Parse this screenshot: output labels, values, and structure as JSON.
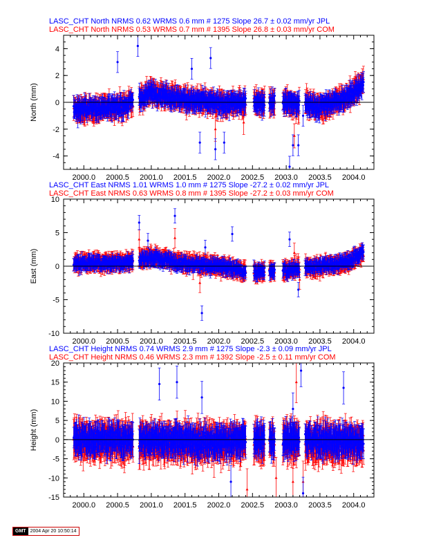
{
  "colors": {
    "jpl": "#0000ff",
    "com": "#ff0000",
    "axis": "#000000"
  },
  "stamp": {
    "tag": "GMT",
    "timestamp": "2004 Apr 20 10:50:14"
  },
  "chart_data": [
    {
      "type": "scatter",
      "component": "north",
      "header": [
        "LASC_CHT North NRMS 0.62 WRMS  0.6 mm # 1275 Slope   26.7 ±  0.02 mm/yr JPL",
        "LASC_CHT North NRMS 0.53 WRMS  0.7 mm # 1395 Slope   26.8 ±  0.03 mm/yr COM"
      ],
      "ylabel": "North (mm)",
      "xlim": [
        1999.7,
        2004.3
      ],
      "ylim": [
        -5,
        5
      ],
      "xticks": [
        "2000.0",
        "2000.5",
        "2001.0",
        "2001.5",
        "2002.0",
        "2002.5",
        "2003.0",
        "2003.5",
        "2004.0"
      ],
      "yticks": [
        "-4",
        "-2",
        "0",
        "2",
        "4"
      ],
      "series": [
        {
          "name": "COM",
          "color": "#ff0000",
          "sigma": 0.75,
          "scatter": 0.8,
          "trend": [
            [
              1999.85,
              -0.6
            ],
            [
              2000.6,
              -0.3
            ],
            [
              2001.0,
              0.8
            ],
            [
              2001.5,
              0.2
            ],
            [
              2002.0,
              -0.2
            ],
            [
              2002.5,
              0.0
            ],
            [
              2003.0,
              0.0
            ],
            [
              2003.5,
              -0.3
            ],
            [
              2003.9,
              0.3
            ],
            [
              2004.15,
              1.6
            ]
          ],
          "outliers": [
            [
              2003.12,
              -2.5
            ],
            [
              2003.3,
              0.5
            ],
            [
              2001.95,
              -2.0
            ],
            [
              2002.37,
              -1.5
            ]
          ]
        },
        {
          "name": "JPL",
          "color": "#0000ff",
          "sigma": 0.65,
          "scatter": 0.65,
          "trend": [
            [
              1999.85,
              -0.5
            ],
            [
              2000.6,
              -0.3
            ],
            [
              2001.0,
              0.7
            ],
            [
              2001.5,
              0.2
            ],
            [
              2002.0,
              -0.1
            ],
            [
              2002.5,
              0.0
            ],
            [
              2003.0,
              0.0
            ],
            [
              2003.5,
              -0.3
            ],
            [
              2003.9,
              0.3
            ],
            [
              2004.15,
              1.5
            ]
          ],
          "outliers": [
            [
              2000.8,
              4.2
            ],
            [
              2001.72,
              -3.0
            ],
            [
              2001.95,
              -3.5
            ],
            [
              2003.1,
              -3.2
            ],
            [
              2003.18,
              -3.2
            ],
            [
              2003.05,
              -4.8
            ],
            [
              2000.5,
              3.0
            ],
            [
              2001.88,
              3.3
            ],
            [
              2001.6,
              2.5
            ],
            [
              2003.25,
              -1.0
            ],
            [
              2002.08,
              -3.0
            ]
          ]
        }
      ]
    },
    {
      "type": "scatter",
      "component": "east",
      "header": [
        "LASC_CHT East NRMS 1.01 WRMS  1.0 mm # 1275 Slope  -27.2 ±  0.02 mm/yr JPL",
        "LASC_CHT East NRMS 0.63 WRMS  0.8 mm # 1395 Slope  -27.2 ±  0.03 mm/yr COM"
      ],
      "ylabel": "East (mm)",
      "xlim": [
        1999.7,
        2004.3
      ],
      "ylim": [
        -10,
        10
      ],
      "xticks": [
        "2000.0",
        "2000.5",
        "2001.0",
        "2001.5",
        "2002.0",
        "2002.5",
        "2003.0",
        "2003.5",
        "2004.0"
      ],
      "yticks": [
        "-10",
        "-5",
        "0",
        "5",
        "10"
      ],
      "series": [
        {
          "name": "COM",
          "color": "#ff0000",
          "sigma": 1.2,
          "scatter": 0.9,
          "trend": [
            [
              1999.85,
              0.5
            ],
            [
              2000.6,
              0.6
            ],
            [
              2001.0,
              1.5
            ],
            [
              2001.5,
              0.5
            ],
            [
              2002.0,
              0.0
            ],
            [
              2002.5,
              -1.0
            ],
            [
              2003.0,
              -0.5
            ],
            [
              2003.5,
              0.0
            ],
            [
              2003.9,
              0.5
            ],
            [
              2004.15,
              2.0
            ]
          ],
          "outliers": [
            [
              2003.12,
              2.0
            ],
            [
              2003.2,
              -2.0
            ],
            [
              2001.72,
              -2.5
            ],
            [
              2000.82,
              4.0
            ],
            [
              2001.35,
              4.2
            ]
          ]
        },
        {
          "name": "JPL",
          "color": "#0000ff",
          "sigma": 0.9,
          "scatter": 1.0,
          "trend": [
            [
              1999.85,
              0.4
            ],
            [
              2000.6,
              0.5
            ],
            [
              2001.0,
              1.3
            ],
            [
              2001.5,
              0.4
            ],
            [
              2002.0,
              0.0
            ],
            [
              2002.5,
              -1.0
            ],
            [
              2003.0,
              -0.5
            ],
            [
              2003.5,
              0.0
            ],
            [
              2003.9,
              0.6
            ],
            [
              2004.15,
              2.2
            ]
          ],
          "outliers": [
            [
              2000.82,
              6.5
            ],
            [
              2001.35,
              7.5
            ],
            [
              2001.75,
              -7.0
            ],
            [
              2002.2,
              4.8
            ],
            [
              2003.18,
              -3.5
            ],
            [
              2003.05,
              4.0
            ],
            [
              2000.95,
              3.8
            ],
            [
              2001.8,
              2.8
            ]
          ]
        }
      ]
    },
    {
      "type": "scatter",
      "component": "height",
      "header": [
        "LASC_CHT Height NRMS 0.74 WRMS  2.9 mm # 1275 Slope   -2.3 ±  0.09 mm/yr JPL",
        "LASC_CHT Height NRMS 0.46 WRMS  2.3 mm # 1392 Slope   -2.5 ±  0.11 mm/yr COM"
      ],
      "ylabel": "Height (mm)",
      "xlim": [
        1999.7,
        2004.3
      ],
      "ylim": [
        -15,
        20
      ],
      "xticks": [
        "2000.0",
        "2000.5",
        "2001.0",
        "2001.5",
        "2002.0",
        "2002.5",
        "2003.0",
        "2003.5",
        "2004.0"
      ],
      "yticks": [
        "-15",
        "-10",
        "-5",
        "0",
        "5",
        "10",
        "15",
        "20"
      ],
      "series": [
        {
          "name": "COM",
          "color": "#ff0000",
          "sigma": 4.5,
          "scatter": 3.5,
          "trend": [
            [
              1999.85,
              0.0
            ],
            [
              2001.0,
              -0.5
            ],
            [
              2002.0,
              -1.0
            ],
            [
              2003.0,
              -0.5
            ],
            [
              2004.15,
              -1.0
            ]
          ],
          "outliers": [
            [
              2003.1,
              -11.0
            ],
            [
              2003.25,
              -11.0
            ],
            [
              2002.42,
              -13.0
            ],
            [
              2002.85,
              -10.0
            ],
            [
              2003.15,
              15.0
            ]
          ]
        },
        {
          "name": "JPL",
          "color": "#0000ff",
          "sigma": 3.5,
          "scatter": 3.2,
          "trend": [
            [
              1999.85,
              0.0
            ],
            [
              2001.0,
              0.0
            ],
            [
              2002.0,
              -0.5
            ],
            [
              2003.0,
              0.0
            ],
            [
              2004.15,
              -0.5
            ]
          ],
          "outliers": [
            [
              2001.38,
              15.0
            ],
            [
              2003.22,
              18.0
            ],
            [
              2003.25,
              -14.0
            ],
            [
              2003.85,
              13.5
            ],
            [
              2001.12,
              14.5
            ],
            [
              2003.1,
              8.0
            ],
            [
              2002.18,
              -11.0
            ],
            [
              2001.75,
              11.0
            ]
          ]
        }
      ]
    }
  ],
  "epochs": {
    "segments": [
      [
        1999.85,
        2000.73
      ],
      [
        2000.82,
        2002.4
      ],
      [
        2002.52,
        2002.68
      ],
      [
        2002.75,
        2002.83
      ],
      [
        2002.95,
        2003.2
      ],
      [
        2003.28,
        2004.15
      ]
    ],
    "step": 0.0061
  }
}
